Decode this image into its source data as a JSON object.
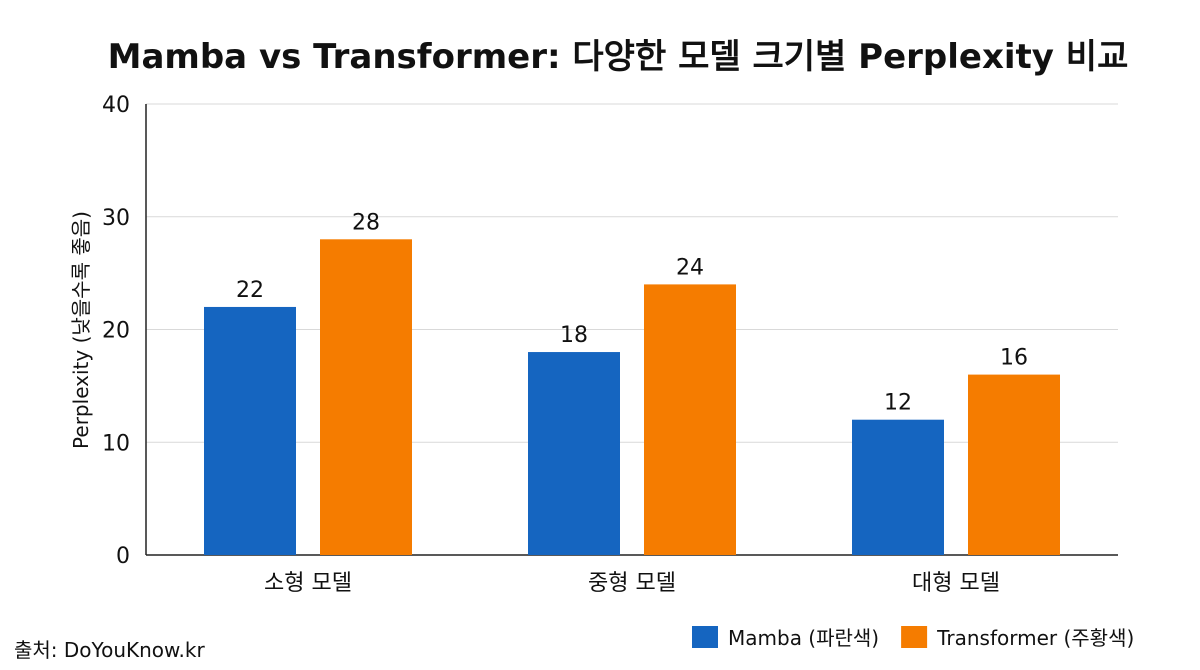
{
  "chart_data": {
    "type": "bar",
    "title": "Mamba vs Transformer: 다양한 모델 크기별 Perplexity 비교",
    "xlabel": "",
    "ylabel": "Perplexity (낮을수록 좋음)",
    "categories": [
      "소형 모델",
      "중형 모델",
      "대형 모델"
    ],
    "series": [
      {
        "name": "Mamba (파란색)",
        "values": [
          22,
          18,
          12
        ],
        "color": "#1565c0"
      },
      {
        "name": "Transformer (주황색)",
        "values": [
          28,
          24,
          16
        ],
        "color": "#f57c00"
      }
    ],
    "ylim": [
      0,
      40
    ],
    "yticks": [
      0,
      10,
      20,
      30,
      40
    ],
    "grid": true,
    "legend_position": "bottom-right",
    "source": "출처: DoYouKnow.kr"
  }
}
